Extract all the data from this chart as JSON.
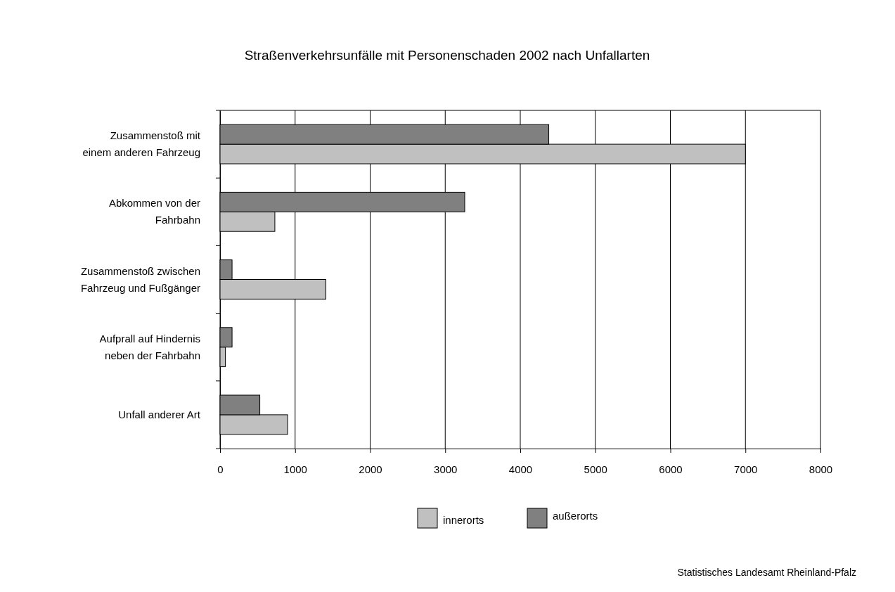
{
  "chart_data": {
    "type": "bar",
    "orientation": "horizontal",
    "title": "Straßenverkehrsunfälle mit Personenschaden 2002 nach Unfallarten",
    "categories": [
      "Zusammenstoß mit einem anderen Fahrzeug",
      "Abkommen von der Fahrbahn",
      "Zusammenstoß zwischen Fahrzeug und Fußgänger",
      "Aufprall auf Hindernis neben der Fahrbahn",
      "Unfall anderer Art"
    ],
    "series": [
      {
        "name": "innerorts",
        "color": "#c0c0c0",
        "values": [
          7000,
          730,
          1410,
          70,
          900
        ]
      },
      {
        "name": "außerorts",
        "color": "#808080",
        "values": [
          4380,
          3260,
          160,
          160,
          530
        ]
      }
    ],
    "xlim": [
      0,
      8000
    ],
    "xticks": [
      0,
      1000,
      2000,
      3000,
      4000,
      5000,
      6000,
      7000,
      8000
    ],
    "grid": "x",
    "legend": "bottom",
    "annotations": [
      "Statistisches Landesamt Rheinland-Pfalz"
    ]
  }
}
